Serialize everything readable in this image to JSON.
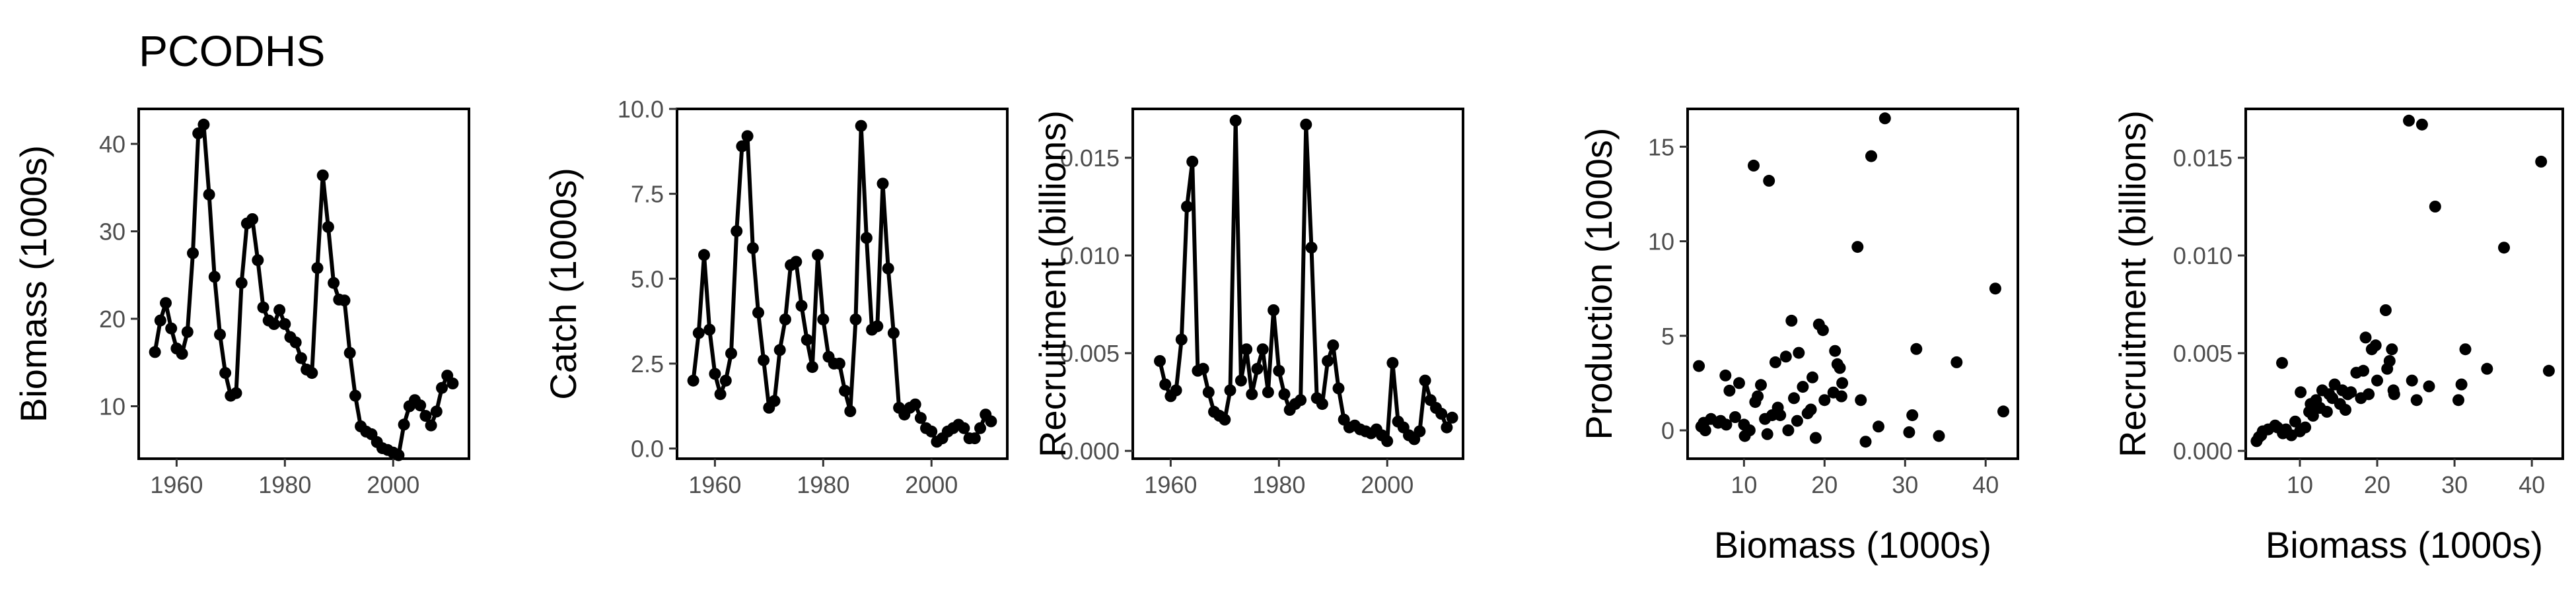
{
  "figure": {
    "title": "PCODHS"
  },
  "colors": {
    "ink": "#000000",
    "tick_text": "#4d4d4d",
    "background": "#ffffff"
  },
  "chart_data": [
    {
      "type": "line",
      "title": "",
      "xlabel": "",
      "ylabel": "Biomass (1000s)",
      "xlim": [
        1953,
        2014
      ],
      "ylim": [
        4,
        44
      ],
      "xticks": [
        1960,
        1980,
        2000
      ],
      "yticks": [
        10,
        20,
        30,
        40
      ],
      "ytick_labels": [
        "10",
        "20",
        "30",
        "40"
      ],
      "grid": false,
      "x": [
        1956,
        1957,
        1958,
        1959,
        1960,
        1961,
        1962,
        1963,
        1964,
        1965,
        1966,
        1967,
        1968,
        1969,
        1970,
        1971,
        1972,
        1973,
        1974,
        1975,
        1976,
        1977,
        1978,
        1979,
        1980,
        1981,
        1982,
        1983,
        1984,
        1985,
        1986,
        1987,
        1988,
        1989,
        1990,
        1991,
        1992,
        1993,
        1994,
        1995,
        1996,
        1997,
        1998,
        1999,
        2000,
        2001,
        2002,
        2003,
        2004,
        2005,
        2006,
        2007,
        2008,
        2009,
        2010,
        2011
      ],
      "y": [
        16.2,
        19.8,
        21.8,
        18.9,
        16.6,
        16.0,
        18.5,
        27.5,
        41.2,
        42.2,
        34.2,
        24.8,
        18.2,
        13.8,
        11.2,
        11.5,
        24.1,
        30.9,
        31.4,
        26.7,
        21.3,
        19.8,
        19.4,
        21.0,
        19.4,
        17.9,
        17.3,
        15.5,
        14.2,
        13.8,
        25.8,
        36.4,
        30.5,
        24.1,
        22.2,
        22.1,
        16.1,
        11.2,
        7.7,
        7.1,
        6.8,
        5.9,
        5.2,
        5.0,
        4.7,
        4.4,
        7.9,
        10.0,
        10.7,
        10.1,
        8.9,
        7.8,
        9.4,
        12.1,
        13.5,
        12.6
      ]
    },
    {
      "type": "line",
      "title": "",
      "xlabel": "",
      "ylabel": "Catch (1000s)",
      "xlim": [
        1953,
        2014
      ],
      "ylim": [
        -0.3,
        10.0
      ],
      "xticks": [
        1960,
        1980,
        2000
      ],
      "yticks": [
        0,
        2.5,
        5.0,
        7.5,
        10.0
      ],
      "ytick_labels": [
        "0.0",
        "2.5",
        "5.0",
        "7.5",
        "10.0"
      ],
      "grid": false,
      "x": [
        1956,
        1957,
        1958,
        1959,
        1960,
        1961,
        1962,
        1963,
        1964,
        1965,
        1966,
        1967,
        1968,
        1969,
        1970,
        1971,
        1972,
        1973,
        1974,
        1975,
        1976,
        1977,
        1978,
        1979,
        1980,
        1981,
        1982,
        1983,
        1984,
        1985,
        1986,
        1987,
        1988,
        1989,
        1990,
        1991,
        1992,
        1993,
        1994,
        1995,
        1996,
        1997,
        1998,
        1999,
        2000,
        2001,
        2002,
        2003,
        2004,
        2005,
        2006,
        2007,
        2008,
        2009,
        2010,
        2011
      ],
      "y": [
        2.0,
        3.4,
        5.7,
        3.5,
        2.2,
        1.6,
        2.0,
        2.8,
        6.4,
        8.9,
        9.2,
        5.9,
        4.0,
        2.6,
        1.2,
        1.4,
        2.9,
        3.8,
        5.4,
        5.5,
        4.2,
        3.2,
        2.4,
        5.7,
        3.8,
        2.7,
        2.5,
        2.5,
        1.7,
        1.1,
        3.8,
        9.5,
        6.2,
        3.5,
        3.6,
        7.8,
        5.3,
        3.4,
        1.2,
        1.0,
        1.2,
        1.3,
        0.9,
        0.6,
        0.5,
        0.2,
        0.3,
        0.5,
        0.6,
        0.7,
        0.6,
        0.3,
        0.3,
        0.6,
        1.0,
        0.8
      ]
    },
    {
      "type": "line",
      "title": "",
      "xlabel": "",
      "ylabel": "Recruitment (billions)",
      "xlim": [
        1953,
        2014
      ],
      "ylim": [
        -0.0004,
        0.0175
      ],
      "xticks": [
        1960,
        1980,
        2000
      ],
      "yticks": [
        0,
        0.005,
        0.01,
        0.015
      ],
      "ytick_labels": [
        "0.000",
        "0.005",
        "0.010",
        "0.015"
      ],
      "grid": false,
      "x": [
        1958,
        1959,
        1960,
        1961,
        1962,
        1963,
        1964,
        1965,
        1966,
        1967,
        1968,
        1969,
        1970,
        1971,
        1972,
        1973,
        1974,
        1975,
        1976,
        1977,
        1978,
        1979,
        1980,
        1981,
        1982,
        1983,
        1984,
        1985,
        1986,
        1987,
        1988,
        1989,
        1990,
        1991,
        1992,
        1993,
        1994,
        1995,
        1996,
        1997,
        1998,
        1999,
        2000,
        2001,
        2002,
        2003,
        2004,
        2005,
        2006,
        2007,
        2008,
        2009,
        2010,
        2011,
        2012
      ],
      "y": [
        0.0046,
        0.0034,
        0.0028,
        0.0031,
        0.0057,
        0.0125,
        0.0148,
        0.0041,
        0.0042,
        0.003,
        0.002,
        0.0018,
        0.0016,
        0.0031,
        0.0169,
        0.0036,
        0.0052,
        0.0029,
        0.0042,
        0.0052,
        0.003,
        0.0072,
        0.0041,
        0.0029,
        0.0021,
        0.0024,
        0.0026,
        0.0167,
        0.0104,
        0.0027,
        0.0024,
        0.0046,
        0.0054,
        0.0032,
        0.0016,
        0.0012,
        0.0013,
        0.0011,
        0.001,
        0.0009,
        0.0011,
        0.0008,
        0.0005,
        0.0045,
        0.0015,
        0.0012,
        0.0008,
        0.0006,
        0.001,
        0.0036,
        0.0026,
        0.0022,
        0.0019,
        0.0012,
        0.0017
      ]
    },
    {
      "type": "scatter",
      "title": "",
      "xlabel": "Biomass (1000s)",
      "ylabel": "Production (1000s)",
      "xlim": [
        3,
        44
      ],
      "ylim": [
        -1.5,
        17
      ],
      "xticks": [
        10,
        20,
        30,
        40
      ],
      "yticks": [
        0,
        5,
        10,
        15
      ],
      "ytick_labels": [
        "0",
        "5",
        "10",
        "15"
      ],
      "grid": false,
      "x": [
        4.4,
        4.7,
        5.0,
        5.2,
        5.9,
        6.8,
        7.1,
        7.7,
        7.8,
        8.2,
        8.9,
        9.4,
        10.0,
        10.1,
        10.7,
        11.2,
        11.4,
        11.7,
        12.1,
        12.6,
        12.9,
        13.5,
        13.9,
        14.2,
        14.5,
        15.2,
        15.5,
        15.9,
        16.2,
        16.6,
        16.8,
        17.3,
        17.9,
        18.3,
        18.5,
        18.9,
        19.3,
        19.8,
        20.0,
        21.1,
        21.3,
        21.6,
        21.9,
        22.1,
        22.2,
        24.1,
        24.5,
        25.1,
        25.8,
        26.7,
        27.5,
        30.5,
        30.9,
        31.4,
        34.2,
        36.4,
        41.2,
        42.2,
        13.1
      ],
      "y": [
        3.4,
        0.2,
        0.4,
        0.0,
        0.6,
        0.4,
        0.5,
        2.9,
        0.3,
        2.1,
        0.7,
        2.5,
        0.3,
        -0.3,
        0.0,
        14.0,
        1.5,
        1.8,
        2.4,
        0.6,
        -0.2,
        0.8,
        3.6,
        1.2,
        0.8,
        3.9,
        0.0,
        5.8,
        1.7,
        0.5,
        4.1,
        2.3,
        0.9,
        1.1,
        2.8,
        -0.4,
        5.6,
        5.3,
        1.6,
        2.0,
        4.2,
        3.5,
        3.3,
        1.8,
        2.5,
        9.7,
        1.6,
        -0.6,
        14.5,
        0.2,
        16.5,
        -0.1,
        0.8,
        4.3,
        -0.3,
        3.6,
        7.5,
        1.0,
        13.2
      ]
    },
    {
      "type": "scatter",
      "title": "",
      "xlabel": "Biomass (1000s)",
      "ylabel": "Recruitment (billions)",
      "xlim": [
        3,
        44
      ],
      "ylim": [
        -0.0004,
        0.0175
      ],
      "xticks": [
        10,
        20,
        30,
        40
      ],
      "yticks": [
        0,
        0.005,
        0.01,
        0.015
      ],
      "ytick_labels": [
        "0.000",
        "0.005",
        "0.010",
        "0.015"
      ],
      "grid": false,
      "x": [
        4.4,
        4.7,
        5.0,
        5.2,
        5.9,
        6.8,
        7.1,
        7.7,
        7.8,
        8.2,
        8.9,
        9.4,
        10.0,
        10.1,
        10.7,
        11.2,
        11.4,
        11.7,
        12.1,
        12.6,
        12.9,
        13.5,
        13.8,
        14.2,
        14.5,
        15.2,
        15.5,
        15.9,
        16.2,
        16.6,
        17.3,
        17.9,
        18.2,
        18.5,
        18.9,
        19.3,
        19.8,
        20.0,
        21.1,
        21.3,
        21.6,
        21.9,
        22.1,
        22.2,
        24.1,
        24.5,
        25.1,
        25.8,
        26.7,
        27.5,
        30.5,
        30.9,
        31.4,
        34.2,
        36.4,
        41.2,
        42.2
      ],
      "y": [
        0.0005,
        0.0007,
        0.0008,
        0.001,
        0.0011,
        0.0013,
        0.0012,
        0.0045,
        0.0009,
        0.0011,
        0.0008,
        0.0015,
        0.001,
        0.003,
        0.0012,
        0.002,
        0.0024,
        0.0018,
        0.0026,
        0.0022,
        0.0031,
        0.002,
        0.0029,
        0.0027,
        0.0034,
        0.0024,
        0.0031,
        0.0021,
        0.0029,
        0.003,
        0.004,
        0.0027,
        0.0041,
        0.0058,
        0.0029,
        0.0052,
        0.0054,
        0.0036,
        0.0072,
        0.0042,
        0.0046,
        0.0052,
        0.0031,
        0.0029,
        0.0169,
        0.0036,
        0.0026,
        0.0167,
        0.0033,
        0.0125,
        0.0026,
        0.0034,
        0.0052,
        0.0042,
        0.0104,
        0.0148,
        0.0041
      ]
    }
  ]
}
